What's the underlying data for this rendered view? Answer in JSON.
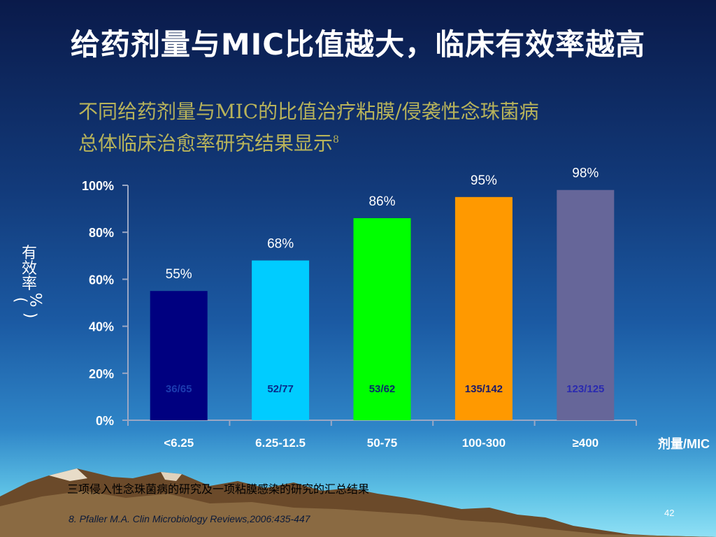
{
  "slide": {
    "title": "给药剂量与MIC比值越大，临床有效率越高",
    "subtitle_line1": "不同给药剂量与MIC的比值治疗粘膜/侵袭性念珠菌病",
    "subtitle_line2": "总体临床治愈率研究结果显示",
    "subtitle_ref": "8",
    "footer_note": "三项侵入性念珠菌病的研究及一项粘膜感染的研究的汇总结果",
    "reference": "8. Pfaller M.A. Clin Microbiology Reviews,2006:435-447",
    "page_number": "42"
  },
  "chart_data": {
    "type": "bar",
    "xlabel": "剂量/MIC",
    "ylabel": "有效率(%)",
    "ylabel_chars": [
      "有",
      "效",
      "率",
      "(",
      "%",
      ")"
    ],
    "categories": [
      "<6.25",
      "6.25-12.5",
      "50-75",
      "100-300",
      "≥400"
    ],
    "values": [
      55,
      68,
      86,
      95,
      98
    ],
    "value_labels": [
      "55%",
      "68%",
      "86%",
      "95%",
      "98%"
    ],
    "counts": [
      "36/65",
      "52/77",
      "53/62",
      "135/142",
      "123/125"
    ],
    "bar_colors": [
      "#000080",
      "#00ccff",
      "#00ff00",
      "#ff9900",
      "#666699"
    ],
    "count_colors": [
      "#1c3cb0",
      "#0a2a8a",
      "#0a2a6a",
      "#1a1a6a",
      "#2a2ab0"
    ],
    "ylim": [
      0,
      100
    ],
    "yticks": [
      "0%",
      "20%",
      "40%",
      "60%",
      "80%",
      "100%"
    ],
    "grid": false,
    "legend": "none"
  }
}
